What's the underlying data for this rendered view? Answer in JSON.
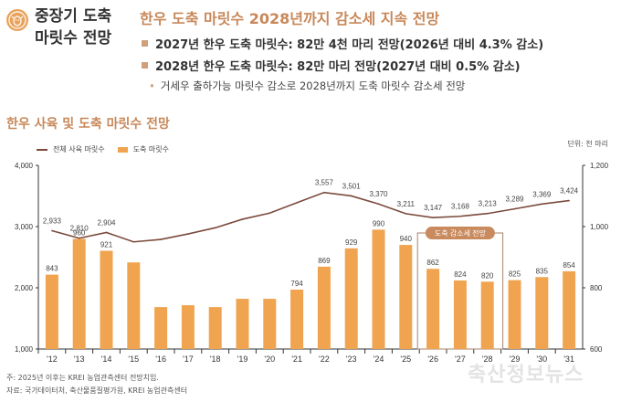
{
  "header": {
    "logo_icon": "cow-face-icon",
    "side_title_line1": "중장기 도축",
    "side_title_line2": "마릿수 전망",
    "headline": "한우 도축 마릿수 2028년까지 감소세 지속 전망",
    "bullets": [
      "2027년 한우 도축 마릿수: 82만 4천 마리 전망(2026년 대비 4.3% 감소)",
      "2028년 한우 도축 마릿수: 82만 마리 전망(2027년 대비 0.5% 감소)"
    ],
    "sub_bullet": "거세우 출하가능 마릿수 감소로 2028년까지 도축 마릿수 감소세 전망"
  },
  "section_title": "한우 사육 및 도축 마릿수 전망",
  "unit_label": "단위: 천 마리",
  "notes": [
    "주: 2025년 이후는 KREI 농업관측센터 전망치임.",
    "자료: 국가데이터처, 축산물품질평가원, KREI 농업관측센터"
  ],
  "watermark": "축산정보뉴스",
  "colors": {
    "bar": "#f0a450",
    "line": "#7b4a3c",
    "accent": "#c8885a",
    "badge": "#c98a5e"
  },
  "chart_data": {
    "type": "bar",
    "title": "한우 사육 및 도축 마릿수 전망",
    "categories": [
      "'12",
      "'13",
      "'14",
      "'15",
      "'16",
      "'17",
      "'18",
      "'19",
      "'20",
      "'21",
      "'22",
      "'23",
      "'24",
      "'25",
      "'26",
      "'27",
      "'28",
      "'29",
      "'30",
      "'31"
    ],
    "series": [
      {
        "name": "전체 사육 마릿수",
        "type": "line",
        "axis": "left",
        "values": [
          2933,
          2810,
          2904,
          2750,
          2790,
          2880,
          2980,
          3120,
          3220,
          3390,
          3557,
          3501,
          3370,
          3211,
          3147,
          3168,
          3213,
          3289,
          3369,
          3424
        ],
        "labels": [
          "2,933",
          "2,810",
          "2,904",
          null,
          null,
          null,
          null,
          null,
          null,
          null,
          "3,557",
          "3,501",
          "3,370",
          "3,211",
          "3,147",
          "3,168",
          "3,213",
          "3,289",
          "3,369",
          "3,424"
        ]
      },
      {
        "name": "도축 마릿수",
        "type": "bar",
        "axis": "right",
        "values": [
          843,
          960,
          921,
          883,
          737,
          743,
          737,
          764,
          764,
          794,
          869,
          929,
          990,
          940,
          862,
          824,
          820,
          825,
          835,
          854
        ],
        "labels": [
          "843",
          "960",
          "921",
          null,
          null,
          null,
          null,
          null,
          null,
          "794",
          "869",
          "929",
          "990",
          "940",
          "862",
          "824",
          "820",
          "825",
          "835",
          "854"
        ]
      }
    ],
    "left_axis": {
      "range": [
        1000,
        4000
      ],
      "ticks": [
        "1,000",
        "2,000",
        "3,000",
        "4,000"
      ]
    },
    "right_axis": {
      "range": [
        600,
        1200
      ],
      "ticks": [
        "600",
        "800",
        "1,000",
        "1,200"
      ]
    },
    "legend": [
      "전체 사육 마릿수",
      "도축 마릿수"
    ],
    "legend_position": "top-left",
    "annotation": {
      "label": "도축 감소세 전망",
      "from": "'26",
      "to": "'28"
    },
    "grid": false
  }
}
